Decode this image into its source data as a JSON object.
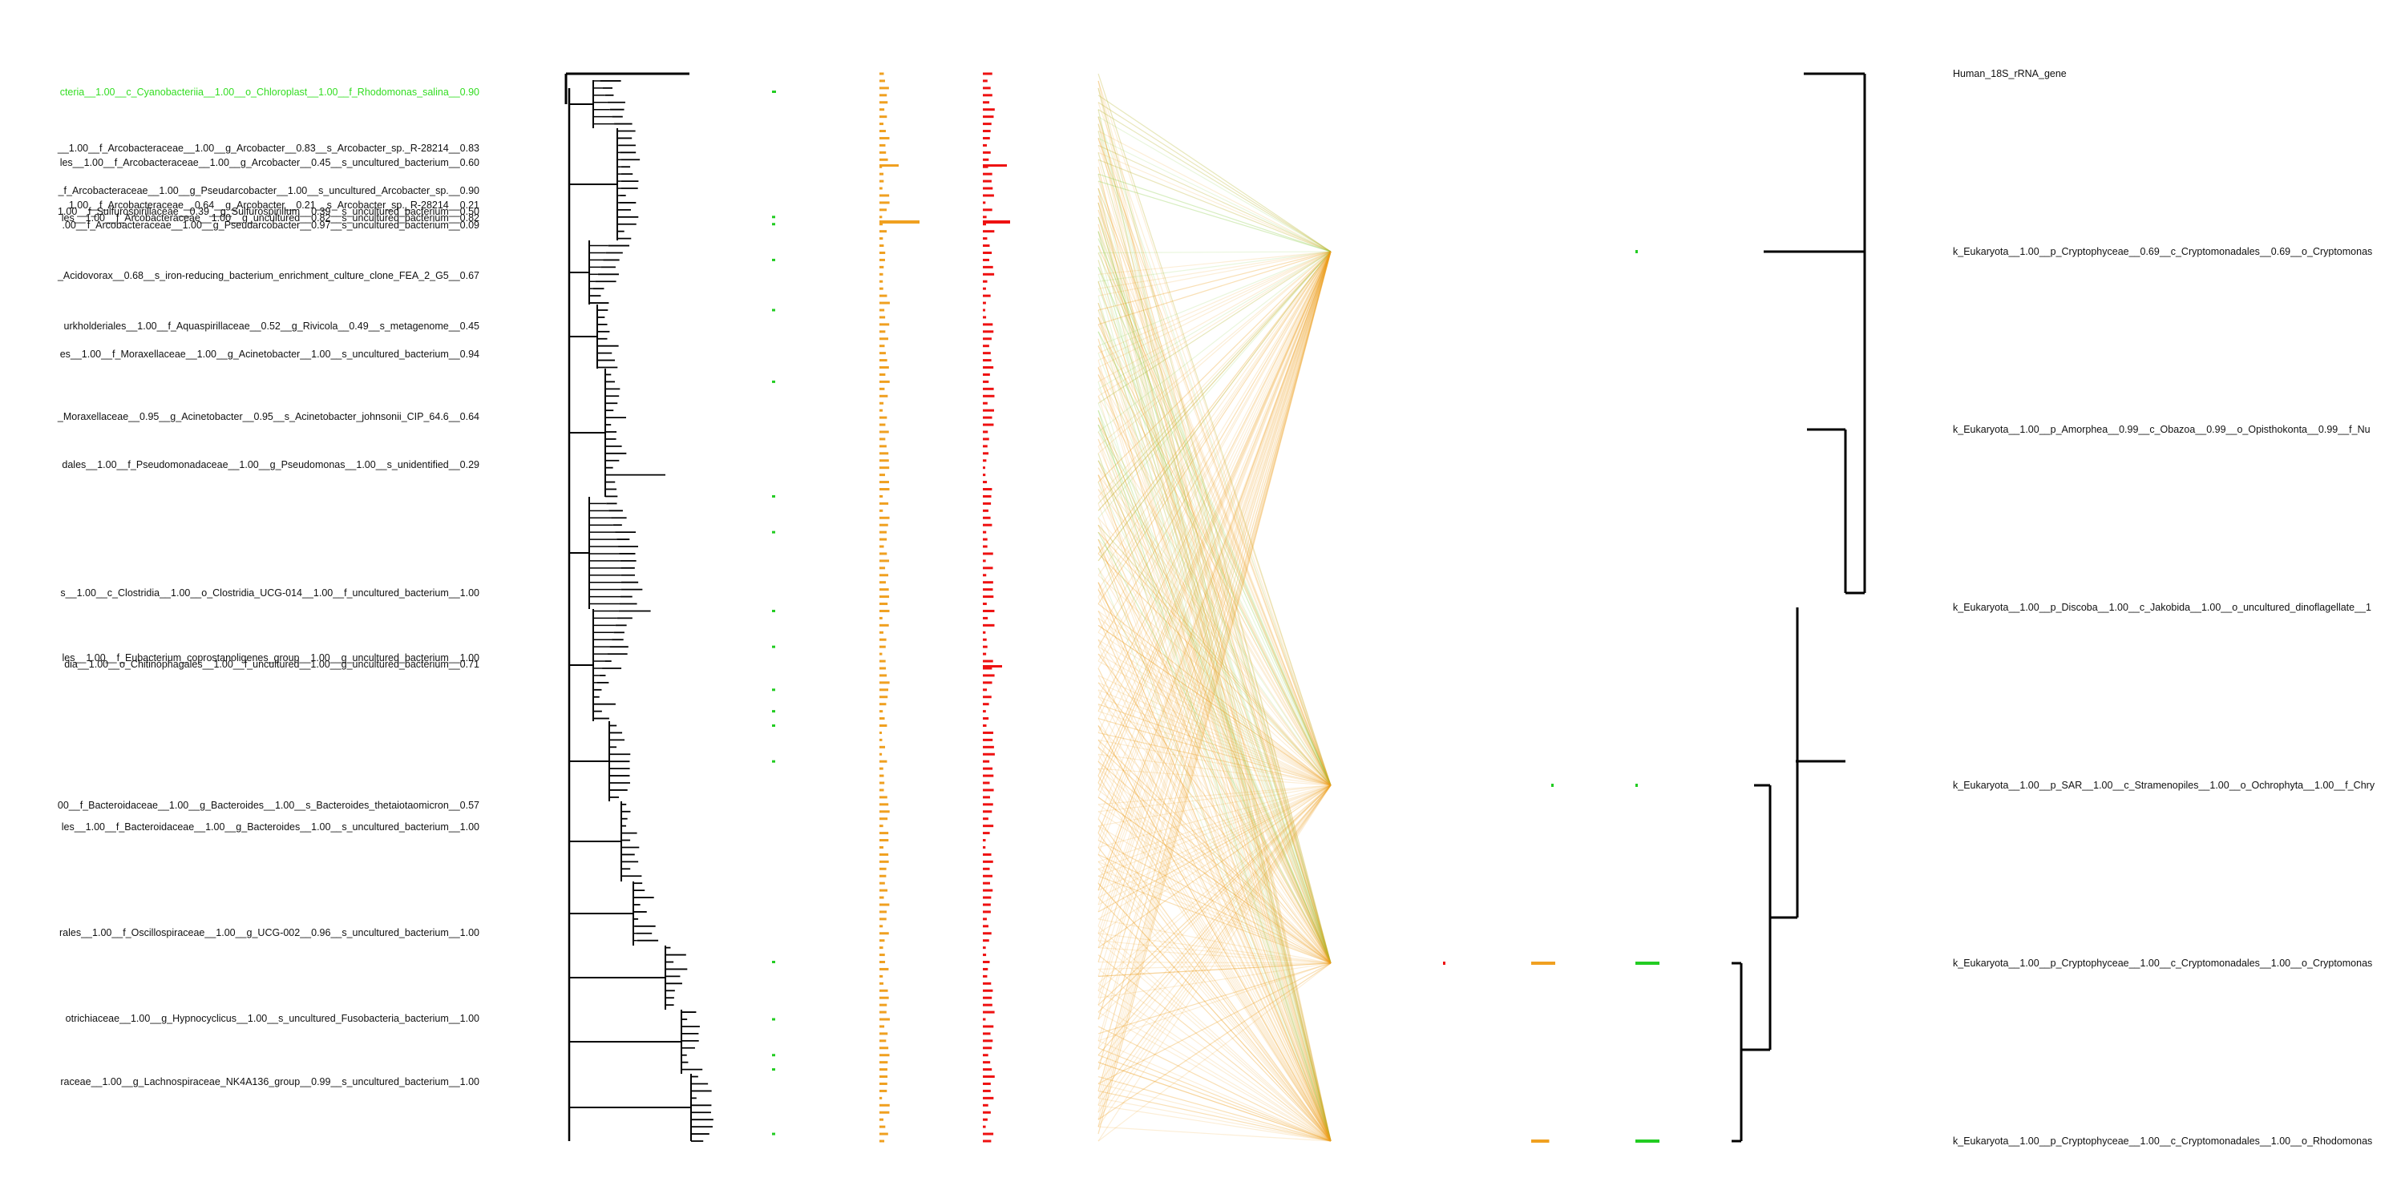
{
  "colors": {
    "tree": "#000000",
    "highlight": "#33dd22",
    "green_bar": "#22cc22",
    "orange_bar": "#f0a020",
    "red_bar": "#ee1111",
    "links": "#f0a020",
    "links_green": "#88cc44",
    "text": "#111111"
  },
  "left_labels": [
    {
      "text": "cteria__1.00__c_Cyanobacteriia__1.00__o_Chloroplast__1.00__f_Rhodomonas_salina__0.90",
      "highlight": true
    },
    {
      "text": "__1.00__f_Arcobacteraceae__1.00__g_Arcobacter__0.83__s_Arcobacter_sp._R-28214__0.83"
    },
    {
      "text": "les__1.00__f_Arcobacteraceae__1.00__g_Arcobacter__0.45__s_uncultured_bacterium__0.60"
    },
    {
      "text": "_f_Arcobacteraceae__1.00__g_Pseudarcobacter__1.00__s_uncultured_Arcobacter_sp.__0.90"
    },
    {
      "text": "1.00__f_Arcobacteraceae__0.64__g_Arcobacter__0.21__s_Arcobacter_sp._R-28214__0.21"
    },
    {
      "text": "1.00__f_Sulfurospirillaceae__0.39__g_Sulfurospirillum__0.39__s_uncultured_bacterium__0.50"
    },
    {
      "text": "les__1.00__f_Arcobacteraceae__1.00__g_uncultured__0.82__s_uncultured_bacterium__0.82"
    },
    {
      "text": ".00__f_Arcobacteraceae__1.00__g_Pseudarcobacter__0.97__s_uncultured_bacterium__0.09"
    },
    {
      "text": "_Acidovorax__0.68__s_iron-reducing_bacterium_enrichment_culture_clone_FEA_2_G5__0.67"
    },
    {
      "text": "urkholderiales__1.00__f_Aquaspirillaceae__0.52__g_Rivicola__0.49__s_metagenome__0.45"
    },
    {
      "text": "es__1.00__f_Moraxellaceae__1.00__g_Acinetobacter__1.00__s_uncultured_bacterium__0.94"
    },
    {
      "text": "_Moraxellaceae__0.95__g_Acinetobacter__0.95__s_Acinetobacter_johnsonii_CIP_64.6__0.64"
    },
    {
      "text": "dales__1.00__f_Pseudomonadaceae__1.00__g_Pseudomonas__1.00__s_unidentified__0.29"
    },
    {
      "text": "s__1.00__c_Clostridia__1.00__o_Clostridia_UCG-014__1.00__f_uncultured_bacterium__1.00"
    },
    {
      "text": "les__1.00__f_Eubacterium_coprostanoligenes_group__1.00__g_uncultured_bacterium__1.00"
    },
    {
      "text": "dia__1.00__o_Chitinophagales__1.00__f_uncultured__1.00__g_uncultured_bacterium__0.71"
    },
    {
      "text": "00__f_Bacteroidaceae__1.00__g_Bacteroides__1.00__s_Bacteroides_thetaiotaomicron__0.57"
    },
    {
      "text": "les__1.00__f_Bacteroidaceae__1.00__g_Bacteroides__1.00__s_uncultured_bacterium__1.00"
    },
    {
      "text": "rales__1.00__f_Oscillospiraceae__1.00__g_UCG-002__0.96__s_uncultured_bacterium__1.00"
    },
    {
      "text": "otrichiaceae__1.00__g_Hypnocyclicus__1.00__s_uncultured_Fusobacteria_bacterium__1.00"
    },
    {
      "text": "raceae__1.00__g_Lachnospiraceae_NK4A136_group__0.99__s_uncultured_bacterium__1.00"
    }
  ],
  "right_labels": [
    {
      "text": "Human_18S_rRNA_gene"
    },
    {
      "text": "k_Eukaryota__1.00__p_Cryptophyceae__0.69__c_Cryptomonadales__0.69__o_Cryptomonas"
    },
    {
      "text": "k_Eukaryota__1.00__p_Amorphea__0.99__c_Obazoa__0.99__o_Opisthokonta__0.99__f_Nu"
    },
    {
      "text": "k_Eukaryota__1.00__p_Discoba__1.00__c_Jakobida__1.00__o_uncultured_dinoflagellate__1"
    },
    {
      "text": "k_Eukaryota__1.00__p_SAR__1.00__c_Stramenopiles__1.00__o_Ochrophyta__1.00__f_Chry"
    },
    {
      "text": "k_Eukaryota__1.00__p_Cryptophyceae__1.00__c_Cryptomonadales__1.00__o_Cryptomonas"
    },
    {
      "text": "k_Eukaryota__1.00__p_Cryptophyceae__1.00__c_Cryptomonadales__1.00__o_Rhodomonas"
    }
  ],
  "right_bars": {
    "green": [
      0,
      0.05,
      0,
      0,
      0.05,
      0.6,
      0.6
    ],
    "orange": [
      0,
      0,
      0,
      0,
      0,
      0.6,
      0.45
    ],
    "red": [
      0,
      0,
      0,
      0,
      0,
      0.1,
      0
    ]
  }
}
